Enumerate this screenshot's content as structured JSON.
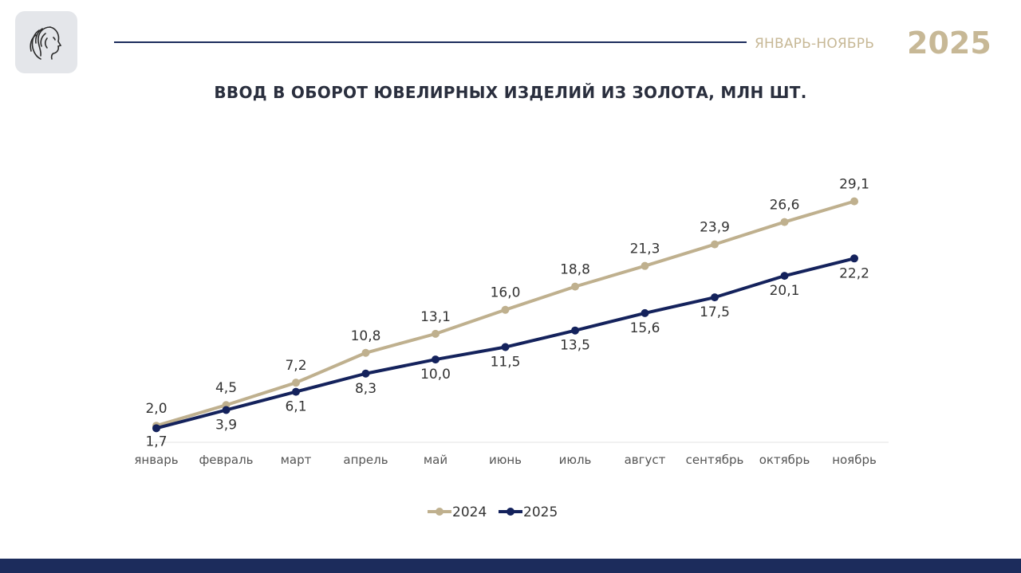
{
  "header": {
    "period": "ЯНВАРЬ-НОЯБРЬ",
    "year": "2025",
    "accent_color": "#c7b896",
    "line_color": "#1c2c5c"
  },
  "logo": {
    "icon": "woman-profile-emblem-icon"
  },
  "chart_data": {
    "type": "line",
    "title": "ВВОД В ОБОРОТ ЮВЕЛИРНЫХ ИЗДЕЛИЙ ИЗ ЗОЛОТА, МЛН ШТ.",
    "xlabel": "",
    "ylabel": "",
    "categories": [
      "январь",
      "февраль",
      "март",
      "апрель",
      "май",
      "июнь",
      "июль",
      "август",
      "сентябрь",
      "октябрь",
      "ноябрь"
    ],
    "ylim": [
      0,
      35
    ],
    "grid": false,
    "legend_position": "bottom-center",
    "series": [
      {
        "name": "2024",
        "color": "#bfb08e",
        "values": [
          2.0,
          4.5,
          7.2,
          10.8,
          13.1,
          16.0,
          18.8,
          21.3,
          23.9,
          26.6,
          29.1
        ],
        "labels": [
          "2,0",
          "4,5",
          "7,2",
          "10,8",
          "13,1",
          "16,0",
          "18,8",
          "21,3",
          "23,9",
          "26,6",
          "29,1"
        ]
      },
      {
        "name": "2025",
        "color": "#14225c",
        "values": [
          1.7,
          3.9,
          6.1,
          8.3,
          10.0,
          11.5,
          13.5,
          15.6,
          17.5,
          20.1,
          22.2
        ],
        "labels": [
          "1,7",
          "3,9",
          "6,1",
          "8,3",
          "10,0",
          "11,5",
          "13,5",
          "15,6",
          "17,5",
          "20,1",
          "22,2"
        ]
      }
    ]
  },
  "footer": {
    "color": "#1c2c5c"
  }
}
